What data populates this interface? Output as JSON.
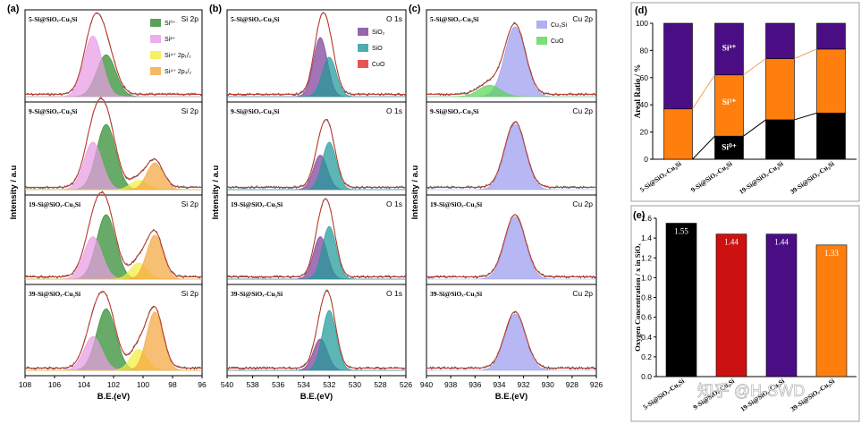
{
  "figure": {
    "watermark": "知乎 @H-SWD",
    "colors": {
      "si0": "#2e8b2e",
      "si2": "#e89be3",
      "si4": "#f3ee3a",
      "si4b": "#f4a63e",
      "sio2": "#7b3f98",
      "sio": "#1f9a9a",
      "cuo_o": "#e02a2a",
      "cu3si": "#9b9bef",
      "cuo_cu": "#59d659",
      "exp": "#555555",
      "fit": "#c0392b",
      "bar_black": "#000000",
      "bar_red": "#cc1111",
      "bar_purple": "#4b0d84",
      "bar_orange": "#ff7f0e"
    }
  },
  "chart_data": [
    {
      "id": "a",
      "type": "line",
      "panel_label": "(a)",
      "xlabel": "B.E.(eV)",
      "ylabel": "Intensity / a.u",
      "xlim": [
        108,
        96
      ],
      "x_ticks": [
        "108",
        "106",
        "104",
        "102",
        "100",
        "98",
        "96"
      ],
      "legend": [
        "Si⁰⁺",
        "Si²⁺",
        "Si⁴⁺ 2p₁/₂",
        "Si⁴⁺ 2p₃/₂"
      ],
      "subplots": [
        {
          "sample": "5-Si@SiOx-Cu3Si",
          "core": "Si 2p"
        },
        {
          "sample": "9-Si@SiOx-Cu3Si",
          "core": "Si 2p"
        },
        {
          "sample": "19-Si@SiOx-Cu3Si",
          "core": "Si 2p"
        },
        {
          "sample": "39-Si@SiOx-Cu3Si",
          "core": "Si 2p"
        }
      ],
      "series": [
        {
          "name": "Si⁰⁺",
          "center": 102.5,
          "amplitudes": [
            0.55,
            0.85,
            0.88,
            0.82
          ]
        },
        {
          "name": "Si²⁺",
          "center": 103.4,
          "amplitudes": [
            0.8,
            0.62,
            0.58,
            0.45
          ]
        },
        {
          "name": "Si⁴⁺ 2p₁/₂",
          "center": 100.3,
          "amplitudes": [
            0.0,
            0.12,
            0.22,
            0.28
          ]
        },
        {
          "name": "Si⁴⁺ 2p₃/₂",
          "center": 99.2,
          "amplitudes": [
            0.0,
            0.35,
            0.6,
            0.78
          ]
        }
      ]
    },
    {
      "id": "b",
      "type": "line",
      "panel_label": "(b)",
      "xlabel": "B.E.(eV)",
      "ylabel": "Intensity / a.u",
      "xlim": [
        540,
        526
      ],
      "x_ticks": [
        "540",
        "538",
        "536",
        "534",
        "532",
        "530",
        "528",
        "526"
      ],
      "legend": [
        "SiO₂",
        "SiO",
        "CuO"
      ],
      "subplots": [
        {
          "sample": "5-Si@SiOx-Cu3Si",
          "core": "O 1s"
        },
        {
          "sample": "9-Si@SiOx-Cu3Si",
          "core": "O 1s"
        },
        {
          "sample": "19-Si@SiOx-Cu3Si",
          "core": "O 1s"
        },
        {
          "sample": "39-Si@SiOx-Cu3Si",
          "core": "O 1s"
        }
      ],
      "series": [
        {
          "name": "SiO₂",
          "center": 532.7,
          "amplitudes": [
            0.78,
            0.45,
            0.58,
            0.42
          ]
        },
        {
          "name": "SiO",
          "center": 532.0,
          "amplitudes": [
            0.52,
            0.62,
            0.72,
            0.8
          ]
        },
        {
          "name": "CuO",
          "center": 530.5,
          "amplitudes": [
            0.0,
            0.0,
            0.0,
            0.0
          ]
        }
      ]
    },
    {
      "id": "c",
      "type": "line",
      "panel_label": "(c)",
      "xlabel": "B.E.(eV)",
      "ylabel": "Intensity / a.u",
      "xlim": [
        940,
        926
      ],
      "x_ticks": [
        "940",
        "938",
        "936",
        "934",
        "932",
        "930",
        "928",
        "926"
      ],
      "legend": [
        "Cu₃Si",
        "CuO"
      ],
      "subplots": [
        {
          "sample": "5-Si@SiOx-Cu3Si",
          "core": "Cu 2p"
        },
        {
          "sample": "9-Si@SiOx-Cu3Si",
          "core": "Cu 2p"
        },
        {
          "sample": "19-Si@SiOx-Cu3Si",
          "core": "Cu 2p"
        },
        {
          "sample": "39-Si@SiOx-Cu3Si",
          "core": "Cu 2p"
        }
      ],
      "series": [
        {
          "name": "Cu₃Si",
          "center": 932.7,
          "amplitudes": [
            0.92,
            0.85,
            0.85,
            0.75
          ]
        },
        {
          "name": "CuO",
          "center": 934.8,
          "amplitudes": [
            0.15,
            0.0,
            0.0,
            0.0
          ]
        }
      ]
    },
    {
      "id": "d",
      "type": "bar",
      "stacked": true,
      "panel_label": "(d)",
      "ylabel": "Areal Ratio / %",
      "ylim": [
        0,
        100
      ],
      "y_ticks": [
        "0",
        "20",
        "40",
        "60",
        "80",
        "100"
      ],
      "categories": [
        "5-Si@SiOx-Cu3Si",
        "9-Si@SiOx-Cu3Si",
        "19-Si@SiOx-Cu3Si",
        "39-Si@SiOx-Cu3Si"
      ],
      "series": [
        {
          "name": "Si⁰⁺",
          "values": [
            0,
            17,
            29,
            34
          ]
        },
        {
          "name": "Si²⁺",
          "values": [
            37,
            45,
            45,
            47
          ]
        },
        {
          "name": "Si⁴⁺",
          "values": [
            63,
            38,
            26,
            19
          ]
        }
      ],
      "annotations": [
        "Si⁴⁺",
        "Si²⁺",
        "Si⁰⁺"
      ]
    },
    {
      "id": "e",
      "type": "bar",
      "panel_label": "(e)",
      "ylabel": "Oxygen Concentration / x in SiOx",
      "ylim": [
        0.0,
        1.6
      ],
      "y_ticks": [
        "0.0",
        "0.2",
        "0.4",
        "0.6",
        "0.8",
        "1.0",
        "1.2",
        "1.4",
        "1.6"
      ],
      "categories": [
        "5-Si@SiOx-Cu3Si",
        "9-Si@SiOx-Cu3Si",
        "19-Si@SiOx-Cu3Si",
        "39-Si@SiOx-Cu3Si"
      ],
      "values": [
        1.55,
        1.44,
        1.44,
        1.33
      ],
      "value_labels": [
        "1.55",
        "1.44",
        "1.44",
        "1.33"
      ]
    }
  ]
}
